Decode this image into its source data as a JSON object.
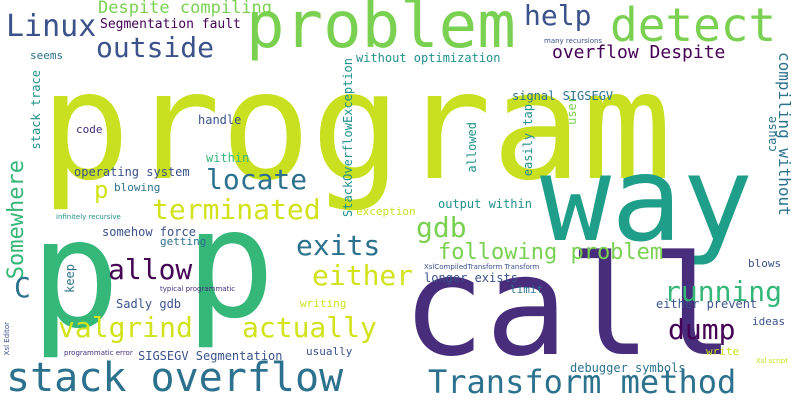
{
  "words": {
    "program": "program",
    "way": "way",
    "call": "call",
    "p1": "p",
    "p2": "p",
    "p3": "p",
    "problem": "problem",
    "detect": "detect",
    "stack_overflow": "stack overflow",
    "transform_method": "Transform method",
    "linux": "Linux",
    "outside": "outside",
    "help": "help",
    "despite_compiling": "Despite compiling",
    "segmentation_fault": "Segmentation fault",
    "overflow_despite": "overflow Despite",
    "locate": "locate",
    "terminated": "terminated",
    "exits": "exits",
    "gdb": "gdb",
    "allow": "allow",
    "either": "either",
    "following_problem": "following problem",
    "running": "running",
    "dump": "dump",
    "valgrind": "valgrind",
    "actually": "actually",
    "somewhere": "Somewhere",
    "compiling_without": "compiling without",
    "stackoverflowexception": "StackOverflowException",
    "seems": "seems",
    "stack_trace": "stack trace",
    "code": "code",
    "handle": "handle",
    "within": "within",
    "operating_system": "operating system",
    "blowing": "blowing",
    "without_optimization": "without optimization",
    "signal_sigsegv": "signal SIGSEGV",
    "user": "user",
    "easily_tap": "easily tap",
    "allowed": "allowed",
    "cause": "cause",
    "output_within": "output within",
    "exception": "exception",
    "somehow_force": "somehow force",
    "getting": "getting",
    "keep": "keep",
    "sadly_gdb": "Sadly gdb",
    "longer_exists": "longer exists",
    "limit": "limit",
    "blows": "blows",
    "either_prevent": "either prevent",
    "ideas": "ideas",
    "write": "write",
    "writing": "writing",
    "usually": "usually",
    "sigsegv_segmentation": "SIGSEGV Segmentation",
    "debugger_symbols": "debugger symbols",
    "infinitely_recursive": "infinitely recursive",
    "typical_programmatic": "typical programmatic",
    "programmatic_error": "programmatic error",
    "xsl_editor": "Xsl Editor",
    "xslcompiledtransform": "XslCompiledTransform Transform",
    "many_recursions": "many recursions",
    "xsl_script": "Xsl script",
    "c": "C"
  },
  "colors": {
    "yellow_green": "#c8e020",
    "lime": "#d2e21b",
    "green": "#5ec962",
    "light_green": "#7ad151",
    "teal": "#21918c",
    "teal_dark": "#1f9e89",
    "blue": "#2c728e",
    "dark_blue": "#3b528b",
    "purple": "#472d7b",
    "deep_purple": "#440154",
    "mint": "#35b779",
    "yellow": "#fde725"
  }
}
